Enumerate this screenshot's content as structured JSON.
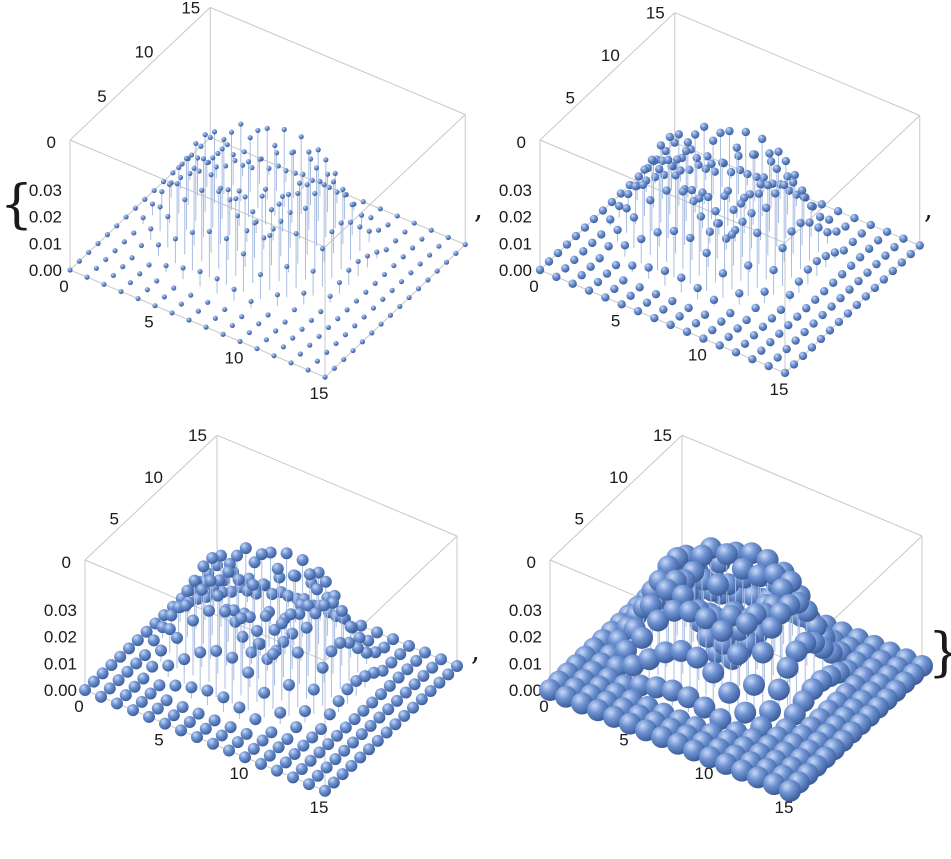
{
  "brackets": {
    "open": "{",
    "close": "}",
    "separator": ","
  },
  "colors": {
    "sphere": "#6a8fd1",
    "sphere_light": "#b8cdf0",
    "sphere_dark": "#3e5f9c",
    "stem": "#a9bde0",
    "box": "#c8c8c8"
  },
  "chart_data": [
    {
      "type": "scatter3d",
      "grid_size": 16,
      "x_range": [
        0,
        15
      ],
      "y_range": [
        0,
        15
      ],
      "z_range": [
        0,
        0.03
      ],
      "x_ticks": [
        "0",
        "5",
        "10",
        "15"
      ],
      "y_ticks": [
        "5",
        "10",
        "15"
      ],
      "y_origin_tick": "0",
      "z_ticks": [
        "0.00",
        "0.01",
        "0.02",
        "0.03"
      ],
      "surface": "ring_bump_with_centre_dip",
      "outer_value": 0.0,
      "peak_value": 0.03,
      "centre_value": 0.0,
      "sphere_scale": "small"
    },
    {
      "type": "scatter3d",
      "grid_size": 16,
      "x_range": [
        0,
        15
      ],
      "y_range": [
        0,
        15
      ],
      "z_range": [
        0,
        0.03
      ],
      "x_ticks": [
        "0",
        "5",
        "10",
        "15"
      ],
      "y_ticks": [
        "5",
        "10",
        "15"
      ],
      "y_origin_tick": "0",
      "z_ticks": [
        "0.00",
        "0.01",
        "0.02",
        "0.03"
      ],
      "surface": "ring_bump_with_centre_dip",
      "outer_value": 0.0,
      "peak_value": 0.03,
      "centre_value": 0.0,
      "sphere_scale": "medium"
    },
    {
      "type": "scatter3d",
      "grid_size": 16,
      "x_range": [
        0,
        15
      ],
      "y_range": [
        0,
        15
      ],
      "z_range": [
        0,
        0.03
      ],
      "x_ticks": [
        "0",
        "5",
        "10",
        "15"
      ],
      "y_ticks": [
        "5",
        "10",
        "15"
      ],
      "y_origin_tick": "0",
      "z_ticks": [
        "0.00",
        "0.01",
        "0.02",
        "0.03"
      ],
      "surface": "ring_bump_with_centre_dip",
      "outer_value": 0.0,
      "peak_value": 0.03,
      "centre_value": 0.0,
      "sphere_scale": "large"
    },
    {
      "type": "scatter3d",
      "grid_size": 16,
      "x_range": [
        0,
        15
      ],
      "y_range": [
        0,
        15
      ],
      "z_range": [
        0,
        0.03
      ],
      "x_ticks": [
        "0",
        "5",
        "10",
        "15"
      ],
      "y_ticks": [
        "5",
        "10",
        "15"
      ],
      "y_origin_tick": "0",
      "z_ticks": [
        "0.00",
        "0.01",
        "0.02",
        "0.03"
      ],
      "surface": "ring_bump_with_centre_dip",
      "outer_value": 0.0,
      "peak_value": 0.03,
      "centre_value": 0.0,
      "sphere_scale": "very-large"
    }
  ]
}
